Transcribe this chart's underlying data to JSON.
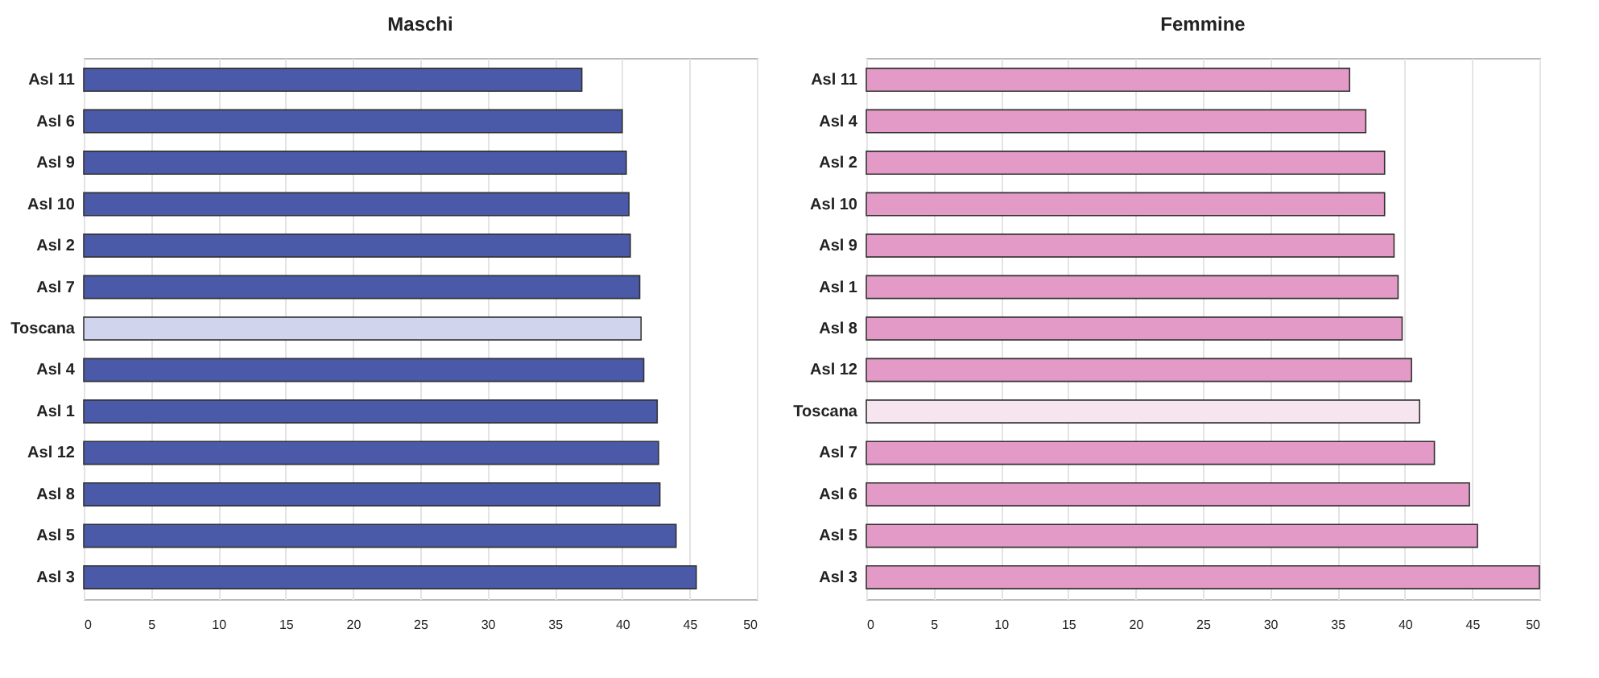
{
  "chart_data": [
    {
      "type": "bar",
      "title": "Maschi",
      "orientation": "horizontal",
      "categories": [
        "Asl 11",
        "Asl 6",
        "Asl 9",
        "Asl 10",
        "Asl 2",
        "Asl 7",
        "Toscana",
        "Asl 4",
        "Asl 1",
        "Asl 12",
        "Asl 8",
        "Asl 5",
        "Asl 3"
      ],
      "values": [
        37.0,
        40.0,
        40.3,
        40.5,
        40.6,
        41.3,
        41.4,
        41.6,
        42.6,
        42.7,
        42.8,
        44.0,
        45.5
      ],
      "colors": [
        "#4a5aa8",
        "#4a5aa8",
        "#4a5aa8",
        "#4a5aa8",
        "#4a5aa8",
        "#4a5aa8",
        "#d0d4ec",
        "#4a5aa8",
        "#4a5aa8",
        "#4a5aa8",
        "#4a5aa8",
        "#4a5aa8",
        "#4a5aa8"
      ],
      "xlim": [
        0,
        50
      ],
      "xticks": [
        0,
        5,
        10,
        15,
        20,
        25,
        30,
        35,
        40,
        45,
        50
      ],
      "grid": "x"
    },
    {
      "type": "bar",
      "title": "Femmine",
      "orientation": "horizontal",
      "categories": [
        "Asl 11",
        "Asl 4",
        "Asl 2",
        "Asl 10",
        "Asl 9",
        "Asl 1",
        "Asl 8",
        "Asl 12",
        "Toscana",
        "Asl 7",
        "Asl 6",
        "Asl 5",
        "Asl 3"
      ],
      "values": [
        35.9,
        37.1,
        38.5,
        38.5,
        39.2,
        39.5,
        39.8,
        40.5,
        41.1,
        42.2,
        44.8,
        45.4,
        50.0
      ],
      "colors": [
        "#e39ac6",
        "#e39ac6",
        "#e39ac6",
        "#e39ac6",
        "#e39ac6",
        "#e39ac6",
        "#e39ac6",
        "#e39ac6",
        "#f6e4ee",
        "#e39ac6",
        "#e39ac6",
        "#e39ac6",
        "#e39ac6"
      ],
      "xlim": [
        0,
        50
      ],
      "xticks": [
        0,
        5,
        10,
        15,
        20,
        25,
        30,
        35,
        40,
        45,
        50
      ],
      "grid": "x"
    }
  ]
}
